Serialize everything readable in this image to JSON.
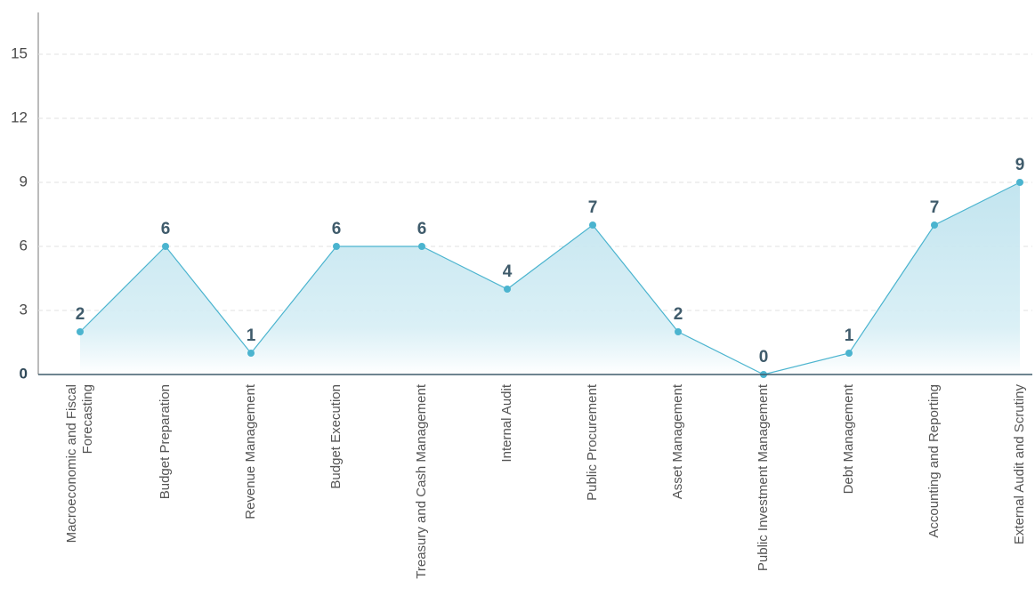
{
  "chart_data": {
    "type": "line",
    "area": true,
    "color": "#4bb4cf",
    "categories": [
      "Macroeconomic and Fiscal Forecasting",
      "Budget Preparation",
      "Revenue Management",
      "Budget Execution",
      "Treasury and Cash Management",
      "Internal Audit",
      "Public Procurement",
      "Asset Management",
      "Public Investment Management",
      "Debt Management",
      "Accounting and Reporting",
      "External Audit and Scrutiny"
    ],
    "values": [
      2,
      6,
      1,
      6,
      6,
      4,
      7,
      2,
      0,
      1,
      7,
      9
    ],
    "ylim": [
      0,
      17
    ],
    "yticks": [
      0,
      3,
      6,
      9,
      12,
      15
    ],
    "grid": true
  }
}
